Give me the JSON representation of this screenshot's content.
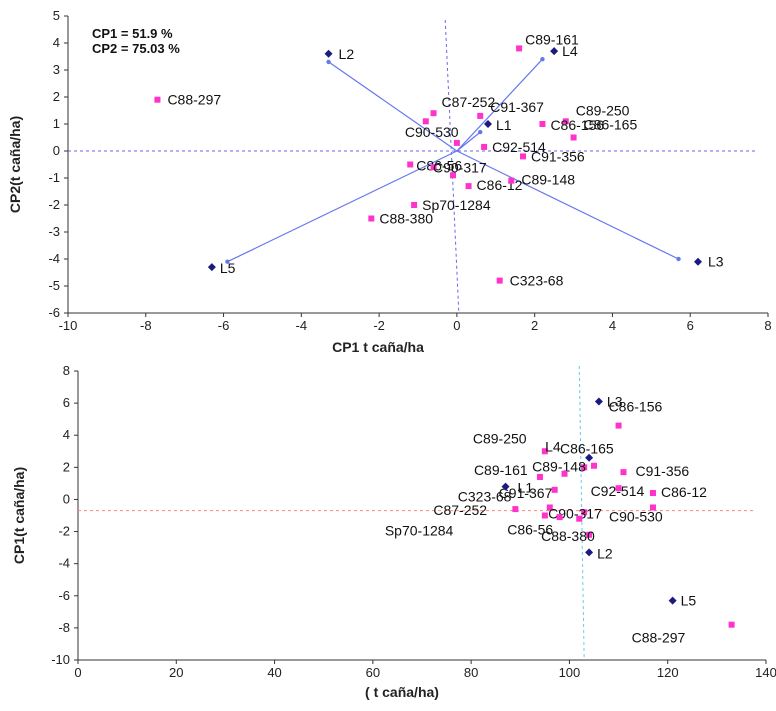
{
  "colors": {
    "genotype": "#ff33cc",
    "location": "#1a1a80",
    "vector": "#6677ee",
    "refline1": "#6666ee",
    "refline2_h": "#ff8888",
    "refline2_v": "#66ccee"
  },
  "chart_data": [
    {
      "type": "scatter",
      "title": "",
      "xlabel": "CP1 t caña/ha",
      "ylabel": "CP2(t caña/ha)",
      "xlim": [
        -10,
        8
      ],
      "ylim": [
        -6,
        5
      ],
      "xticks": [
        -10,
        -8,
        -6,
        -4,
        -2,
        0,
        2,
        4,
        6,
        8
      ],
      "yticks": [
        -6,
        -5,
        -4,
        -3,
        -2,
        -1,
        0,
        1,
        2,
        3,
        4,
        5
      ],
      "annotations": [
        "CP1 = 51.9 %",
        "CP2 = 75.03 %"
      ],
      "series": [
        {
          "kind": "genotype",
          "points": [
            {
              "label": "C88-297",
              "x": -7.7,
              "y": 1.9
            },
            {
              "label": "C89-161",
              "x": 1.6,
              "y": 3.8
            },
            {
              "label": "C87-252",
              "x": -0.6,
              "y": 1.4
            },
            {
              "label": "",
              "x": -0.8,
              "y": 1.1
            },
            {
              "label": "C91-367",
              "x": 0.6,
              "y": 1.3
            },
            {
              "label": "C89-250",
              "x": 2.8,
              "y": 1.1
            },
            {
              "label": "C86-156",
              "x": 2.2,
              "y": 1.0
            },
            {
              "label": "C90-530",
              "x": 0,
              "y": 0.3
            },
            {
              "label": "C92-514",
              "x": 0.7,
              "y": 0.15
            },
            {
              "label": "C86-165",
              "x": 3.0,
              "y": 0.5
            },
            {
              "label": "C91-356",
              "x": 1.7,
              "y": -0.2
            },
            {
              "label": "C86-56",
              "x": -1.2,
              "y": -0.5
            },
            {
              "label": "",
              "x": -0.6,
              "y": -0.6
            },
            {
              "label": "C90-317",
              "x": -0.1,
              "y": -0.9
            },
            {
              "label": "C86-12",
              "x": 0.3,
              "y": -1.3
            },
            {
              "label": "C89-148",
              "x": 1.4,
              "y": -1.1
            },
            {
              "label": "Sp70-1284",
              "x": -1.1,
              "y": -2.0
            },
            {
              "label": "C88-380",
              "x": -2.2,
              "y": -2.5
            },
            {
              "label": "C323-68",
              "x": 1.1,
              "y": -4.8
            }
          ]
        },
        {
          "kind": "location",
          "points": [
            {
              "label": "L2",
              "x": -3.3,
              "y": 3.6
            },
            {
              "label": "L4",
              "x": 2.5,
              "y": 3.7
            },
            {
              "label": "L1",
              "x": 0.8,
              "y": 1.0
            },
            {
              "label": "L3",
              "x": 6.2,
              "y": -4.1
            },
            {
              "label": "L5",
              "x": -6.3,
              "y": -4.3
            }
          ]
        }
      ],
      "vectors": [
        {
          "x": -3.3,
          "y": 3.3
        },
        {
          "x": 2.2,
          "y": 3.4
        },
        {
          "x": 0.6,
          "y": 0.7
        },
        {
          "x": 5.7,
          "y": -4.0
        },
        {
          "x": -5.9,
          "y": -4.1
        }
      ]
    },
    {
      "type": "scatter",
      "title": "",
      "xlabel": "( t caña/ha)",
      "ylabel": "CP1(t caña/ha)",
      "xlim": [
        0,
        140
      ],
      "ylim": [
        -10,
        8
      ],
      "xticks": [
        0,
        20,
        40,
        60,
        80,
        100,
        120,
        140
      ],
      "yticks": [
        -10,
        -8,
        -6,
        -4,
        -2,
        0,
        2,
        4,
        6,
        8
      ],
      "series": [
        {
          "kind": "genotype",
          "points": [
            {
              "label": "C89-250",
              "x": 95,
              "y": 3.0
            },
            {
              "label": "C86-156",
              "x": 110,
              "y": 4.6
            },
            {
              "label": "C86-165",
              "x": 105,
              "y": 2.1
            },
            {
              "label": "C89-161",
              "x": 94,
              "y": 1.4
            },
            {
              "label": "C89-148",
              "x": 103,
              "y": 2.0
            },
            {
              "label": "",
              "x": 99,
              "y": 1.6
            },
            {
              "label": "C91-356",
              "x": 111,
              "y": 1.7
            },
            {
              "label": "C91-367",
              "x": 97,
              "y": 0.6
            },
            {
              "label": "C92-514",
              "x": 110,
              "y": 0.7
            },
            {
              "label": "C86-12",
              "x": 117,
              "y": 0.4
            },
            {
              "label": "C323-68",
              "x": 96,
              "y": -0.5
            },
            {
              "label": "C87-252",
              "x": 89,
              "y": -0.6
            },
            {
              "label": "C90-317",
              "x": 103,
              "y": -0.8
            },
            {
              "label": "C90-530",
              "x": 117,
              "y": -0.5
            },
            {
              "label": "",
              "x": 98,
              "y": -1.1
            },
            {
              "label": "C86-56",
              "x": 102,
              "y": -1.2
            },
            {
              "label": "C88-380",
              "x": 104,
              "y": -2.2
            },
            {
              "label": "Sp70-1284",
              "x": 95,
              "y": -1.0
            },
            {
              "label": "C88-297",
              "x": 133,
              "y": -7.8
            }
          ]
        },
        {
          "kind": "location",
          "points": [
            {
              "label": "L3",
              "x": 106,
              "y": 6.1
            },
            {
              "label": "L4",
              "x": 104,
              "y": 2.6
            },
            {
              "label": "L1",
              "x": 87,
              "y": 0.8
            },
            {
              "label": "L2",
              "x": 104,
              "y": -3.3
            },
            {
              "label": "L5",
              "x": 121,
              "y": -6.3
            }
          ]
        }
      ]
    }
  ]
}
